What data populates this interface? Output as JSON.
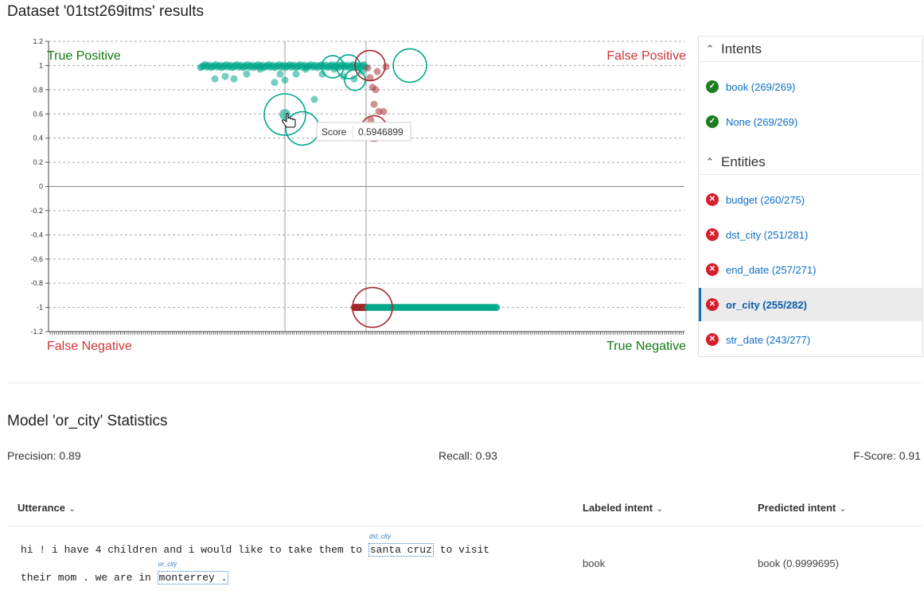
{
  "page_title": "Dataset '01tst269itms' results",
  "chart_data": {
    "type": "scatter",
    "title": "",
    "xlabel": "",
    "ylabel": "",
    "ylim": [
      -1.2,
      1.2
    ],
    "yticks": [
      "1.2",
      "1",
      "0.8",
      "0.6",
      "0.4",
      "0.2",
      "0",
      "-0.2",
      "-0.4",
      "-0.6",
      "-0.8",
      "-1",
      "-1.2"
    ],
    "grid": true,
    "quadrant_labels": {
      "top_left": "True Positive",
      "top_right": "False Positive",
      "bottom_left": "False Negative",
      "bottom_right": "True Negative"
    },
    "colors": {
      "positive": "#00a88a",
      "negative": "#a4262c",
      "label_green": "#107c10",
      "label_red": "#d13438"
    },
    "tooltip": {
      "label": "Score",
      "value": "0.5946899"
    },
    "series": [
      {
        "name": "",
        "color": "#00a88a",
        "y_values": [
          1.0,
          0.99,
          0.98,
          0.97,
          0.93,
          0.91,
          0.89,
          0.86,
          0.8,
          0.72,
          0.6,
          0.5
        ]
      },
      {
        "name": "",
        "color": "#a4262c",
        "y_values": [
          1.0,
          0.98,
          0.9,
          0.8,
          0.68,
          0.62,
          0.55,
          -1.0
        ]
      },
      {
        "name": "",
        "color": "#00a88a",
        "y_values": [
          -1.0
        ]
      }
    ]
  },
  "intents": {
    "header": "Intents",
    "items": [
      {
        "label": "book (269/269)",
        "status": "ok"
      },
      {
        "label": "None (269/269)",
        "status": "ok"
      }
    ]
  },
  "entities": {
    "header": "Entities",
    "items": [
      {
        "label": "budget (260/275)",
        "status": "err"
      },
      {
        "label": "dst_city (251/281)",
        "status": "err"
      },
      {
        "label": "end_date (257/271)",
        "status": "err"
      },
      {
        "label": "or_city (255/282)",
        "status": "err"
      },
      {
        "label": "str_date (243/277)",
        "status": "err"
      }
    ]
  },
  "stats": {
    "title": "Model 'or_city' Statistics",
    "precision": "Precision: 0.89",
    "recall": "Recall: 0.93",
    "fscore": "F-Score: 0.91"
  },
  "table": {
    "headers": [
      "Utterance",
      "Labeled intent",
      "Predicted intent"
    ],
    "row": {
      "line1_pre": "hi ! i have 4 children and i would like to take them to ",
      "ent1_text": "santa cruz",
      "ent1_tag": "dst_city",
      "line1_post": " to visit",
      "line2_pre": "their mom . we are in ",
      "ent2_text": "monterrey .",
      "ent2_tag": "or_city",
      "labeled": "book",
      "predicted": "book (0.9999695)"
    }
  }
}
